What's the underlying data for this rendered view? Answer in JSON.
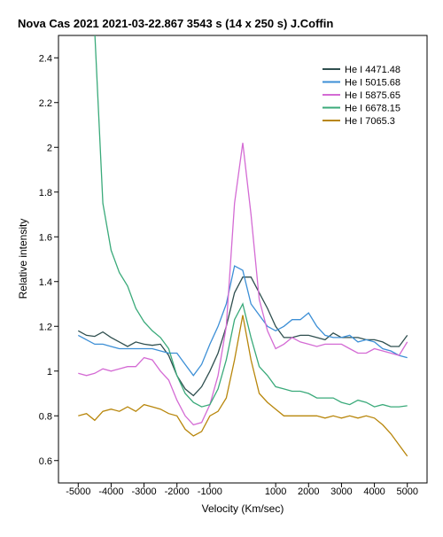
{
  "chart_data": {
    "type": "line",
    "title": "Nova Cas 2021   2021-03-22.867   3543 s (14 x 250 s)   J.Coffin",
    "xlabel": "Velocity (Km/sec)",
    "ylabel": "Relative intensity",
    "xlim": [
      -5600,
      5600
    ],
    "ylim": [
      0.5,
      2.5
    ],
    "xticks": [
      -5000,
      -4000,
      -3000,
      -2000,
      -1000,
      1000,
      2000,
      3000,
      4000,
      5000
    ],
    "xtick_labels": [
      "-5000",
      "-4000",
      "-3000",
      "-2000",
      "-1000",
      "1000",
      "2000",
      "3000",
      "4000",
      "5000"
    ],
    "yticks": [
      0.6,
      0.8,
      1.0,
      1.2,
      1.4,
      1.6,
      1.8,
      2.0,
      2.2,
      2.4
    ],
    "ytick_labels": [
      "0.6",
      "0.8",
      "1",
      "1.2",
      "1.4",
      "1.6",
      "1.8",
      "2",
      "2.2",
      "2.4"
    ],
    "grid": false,
    "legend_position": "top-right",
    "series": [
      {
        "name": "He I  4471.48",
        "color": "#2f4f4f",
        "x": [
          -5000,
          -4750,
          -4500,
          -4250,
          -4000,
          -3750,
          -3500,
          -3250,
          -3000,
          -2750,
          -2500,
          -2250,
          -2000,
          -1750,
          -1500,
          -1250,
          -1000,
          -750,
          -500,
          -250,
          0,
          250,
          500,
          750,
          1000,
          1250,
          1500,
          1750,
          2000,
          2250,
          2500,
          2750,
          3000,
          3250,
          3500,
          3750,
          4000,
          4250,
          4500,
          4750,
          5000
        ],
        "y": [
          1.18,
          1.16,
          1.155,
          1.175,
          1.15,
          1.13,
          1.11,
          1.13,
          1.12,
          1.115,
          1.12,
          1.07,
          0.98,
          0.92,
          0.89,
          0.93,
          1.0,
          1.08,
          1.2,
          1.35,
          1.42,
          1.42,
          1.35,
          1.28,
          1.2,
          1.15,
          1.15,
          1.16,
          1.16,
          1.15,
          1.14,
          1.17,
          1.15,
          1.15,
          1.15,
          1.14,
          1.14,
          1.13,
          1.11,
          1.11,
          1.16
        ]
      },
      {
        "name": "He I  5015.68",
        "color": "#3c8fd6",
        "x": [
          -5000,
          -4750,
          -4500,
          -4250,
          -4000,
          -3750,
          -3500,
          -3250,
          -3000,
          -2750,
          -2500,
          -2250,
          -2000,
          -1750,
          -1500,
          -1250,
          -1000,
          -750,
          -500,
          -250,
          0,
          250,
          500,
          750,
          1000,
          1250,
          1500,
          1750,
          2000,
          2250,
          2500,
          2750,
          3000,
          3250,
          3500,
          3750,
          4000,
          4250,
          4500,
          4750,
          5000
        ],
        "y": [
          1.16,
          1.14,
          1.12,
          1.12,
          1.11,
          1.1,
          1.1,
          1.1,
          1.1,
          1.1,
          1.09,
          1.08,
          1.08,
          1.03,
          0.98,
          1.03,
          1.12,
          1.2,
          1.3,
          1.47,
          1.45,
          1.3,
          1.25,
          1.2,
          1.18,
          1.2,
          1.23,
          1.23,
          1.26,
          1.2,
          1.16,
          1.15,
          1.15,
          1.16,
          1.13,
          1.14,
          1.13,
          1.1,
          1.09,
          1.07,
          1.06
        ]
      },
      {
        "name": "He I  5875.65",
        "color": "#d46bd4",
        "x": [
          -5000,
          -4750,
          -4500,
          -4250,
          -4000,
          -3750,
          -3500,
          -3250,
          -3000,
          -2750,
          -2500,
          -2250,
          -2000,
          -1750,
          -1500,
          -1250,
          -1000,
          -750,
          -500,
          -250,
          0,
          250,
          500,
          750,
          1000,
          1250,
          1500,
          1750,
          2000,
          2250,
          2500,
          2750,
          3000,
          3250,
          3500,
          3750,
          4000,
          4250,
          4500,
          4750,
          5000
        ],
        "y": [
          0.99,
          0.98,
          0.99,
          1.01,
          1.0,
          1.01,
          1.02,
          1.02,
          1.06,
          1.05,
          1.0,
          0.96,
          0.87,
          0.8,
          0.76,
          0.77,
          0.85,
          0.98,
          1.2,
          1.75,
          2.02,
          1.7,
          1.32,
          1.18,
          1.1,
          1.12,
          1.15,
          1.13,
          1.12,
          1.11,
          1.12,
          1.12,
          1.12,
          1.1,
          1.08,
          1.08,
          1.1,
          1.09,
          1.08,
          1.07,
          1.13
        ]
      },
      {
        "name": "He I  6678.15",
        "color": "#3aaa7a",
        "x": [
          -4500,
          -4250,
          -4000,
          -3750,
          -3500,
          -3250,
          -3000,
          -2750,
          -2500,
          -2250,
          -2000,
          -1750,
          -1500,
          -1250,
          -1000,
          -750,
          -500,
          -250,
          0,
          250,
          500,
          750,
          1000,
          1250,
          1500,
          1750,
          2000,
          2250,
          2500,
          2750,
          3000,
          3250,
          3500,
          3750,
          4000,
          4250,
          4500,
          4750,
          5000
        ],
        "y": [
          2.52,
          1.75,
          1.54,
          1.44,
          1.38,
          1.28,
          1.22,
          1.18,
          1.15,
          1.1,
          0.98,
          0.9,
          0.86,
          0.84,
          0.85,
          0.92,
          1.05,
          1.23,
          1.3,
          1.15,
          1.02,
          0.98,
          0.93,
          0.92,
          0.91,
          0.91,
          0.9,
          0.88,
          0.88,
          0.88,
          0.86,
          0.85,
          0.87,
          0.86,
          0.84,
          0.85,
          0.84,
          0.84,
          0.845
        ]
      },
      {
        "name": "He I  7065.3",
        "color": "#b8860b",
        "x": [
          -5000,
          -4750,
          -4500,
          -4250,
          -4000,
          -3750,
          -3500,
          -3250,
          -3000,
          -2750,
          -2500,
          -2250,
          -2000,
          -1750,
          -1500,
          -1250,
          -1000,
          -750,
          -500,
          -250,
          0,
          250,
          500,
          750,
          1000,
          1250,
          1500,
          1750,
          2000,
          2250,
          2500,
          2750,
          3000,
          3250,
          3500,
          3750,
          4000,
          4250,
          4500,
          4750,
          5000
        ],
        "y": [
          0.8,
          0.81,
          0.78,
          0.82,
          0.83,
          0.82,
          0.84,
          0.82,
          0.85,
          0.84,
          0.83,
          0.81,
          0.8,
          0.74,
          0.71,
          0.73,
          0.8,
          0.82,
          0.88,
          1.05,
          1.25,
          1.05,
          0.9,
          0.86,
          0.83,
          0.8,
          0.8,
          0.8,
          0.8,
          0.8,
          0.79,
          0.8,
          0.79,
          0.8,
          0.79,
          0.8,
          0.79,
          0.76,
          0.72,
          0.67,
          0.62
        ]
      }
    ]
  }
}
